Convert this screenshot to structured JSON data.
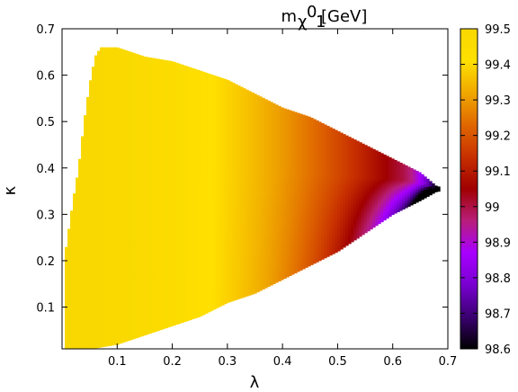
{
  "chart_data": {
    "type": "heatmap",
    "title": {
      "main": "m",
      "sub": "χ",
      "sup": "0",
      "sub2": "1",
      "unit": " [GeV]"
    },
    "xlabel": "λ",
    "ylabel": "κ",
    "xlim": [
      0.0,
      0.7
    ],
    "ylim": [
      0.01,
      0.7
    ],
    "x_ticks": [
      "0.1",
      "0.2",
      "0.3",
      "0.4",
      "0.5",
      "0.6",
      "0.7"
    ],
    "y_ticks": [
      "0.1",
      "0.2",
      "0.3",
      "0.4",
      "0.5",
      "0.6",
      "0.7"
    ],
    "colorbar": {
      "range": [
        98.6,
        99.5
      ],
      "ticks": [
        "98.6",
        "98.7",
        "98.8",
        "98.9",
        "99",
        "99.1",
        "99.2",
        "99.3",
        "99.4",
        "99.5"
      ],
      "colors": [
        "#000000",
        "#3a0070",
        "#7800d0",
        "#a800ff",
        "#b81e7a",
        "#a00000",
        "#c83000",
        "#e06800",
        "#f0a800",
        "#ffe000",
        "#f8d800"
      ]
    },
    "region": {
      "upper_boundary": [
        [
          0.005,
          0.21
        ],
        [
          0.02,
          0.33
        ],
        [
          0.03,
          0.4
        ],
        [
          0.04,
          0.5
        ],
        [
          0.05,
          0.58
        ],
        [
          0.06,
          0.64
        ],
        [
          0.07,
          0.66
        ],
        [
          0.1,
          0.66
        ],
        [
          0.15,
          0.64
        ],
        [
          0.2,
          0.63
        ],
        [
          0.25,
          0.61
        ],
        [
          0.3,
          0.59
        ],
        [
          0.35,
          0.56
        ],
        [
          0.4,
          0.53
        ],
        [
          0.45,
          0.51
        ],
        [
          0.5,
          0.48
        ],
        [
          0.55,
          0.45
        ],
        [
          0.6,
          0.42
        ],
        [
          0.65,
          0.39
        ],
        [
          0.68,
          0.36
        ]
      ],
      "lower_boundary": [
        [
          0.005,
          0.01
        ],
        [
          0.05,
          0.01
        ],
        [
          0.1,
          0.02
        ],
        [
          0.15,
          0.04
        ],
        [
          0.2,
          0.06
        ],
        [
          0.25,
          0.08
        ],
        [
          0.3,
          0.11
        ],
        [
          0.35,
          0.13
        ],
        [
          0.4,
          0.16
        ],
        [
          0.45,
          0.19
        ],
        [
          0.5,
          0.22
        ],
        [
          0.55,
          0.26
        ],
        [
          0.6,
          0.3
        ],
        [
          0.65,
          0.33
        ],
        [
          0.68,
          0.35
        ]
      ],
      "value_model": {
        "max_value": 99.5,
        "min_value": 98.6,
        "apex": [
          0.685,
          0.355
        ]
      }
    }
  }
}
